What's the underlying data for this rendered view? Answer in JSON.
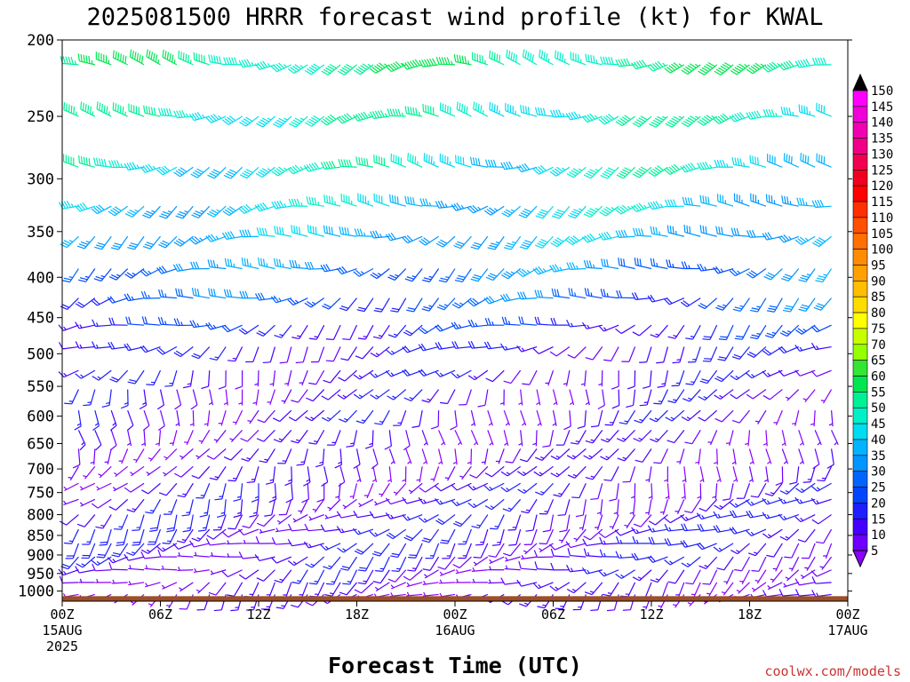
{
  "chart_data": {
    "type": "wind-barb-profile",
    "title": "2025081500 HRRR forecast wind profile (kt) for KWAL",
    "xlabel": "Forecast Time (UTC)",
    "ylabel": "",
    "credit": "coolwx.com/models",
    "x_range_hours": [
      0,
      48
    ],
    "y_range_hpa": [
      200,
      1030
    ],
    "y_scale": "log",
    "y_ticks": [
      "200",
      "250",
      "300",
      "350",
      "400",
      "450",
      "500",
      "550",
      "600",
      "650",
      "700",
      "750",
      "800",
      "850",
      "900",
      "950",
      "1000"
    ],
    "x_ticks": [
      {
        "label": "00Z",
        "sub": [
          "15AUG",
          "2025"
        ],
        "hour": 0
      },
      {
        "label": "06Z",
        "sub": [],
        "hour": 6
      },
      {
        "label": "12Z",
        "sub": [],
        "hour": 12
      },
      {
        "label": "18Z",
        "sub": [],
        "hour": 18
      },
      {
        "label": "00Z",
        "sub": [
          "16AUG"
        ],
        "hour": 24
      },
      {
        "label": "06Z",
        "sub": [],
        "hour": 30
      },
      {
        "label": "12Z",
        "sub": [],
        "hour": 36
      },
      {
        "label": "18Z",
        "sub": [],
        "hour": 42
      },
      {
        "label": "00Z",
        "sub": [
          "17AUG"
        ],
        "hour": 48
      }
    ],
    "colorbar": {
      "labels": [
        "150",
        "145",
        "140",
        "135",
        "130",
        "125",
        "120",
        "115",
        "110",
        "105",
        "100",
        "95",
        "90",
        "85",
        "80",
        "75",
        "70",
        "65",
        "60",
        "55",
        "50",
        "45",
        "40",
        "35",
        "30",
        "25",
        "20",
        "15",
        "10",
        "5"
      ],
      "colors": [
        "#ff00ff",
        "#f000d8",
        "#f000b0",
        "#f00088",
        "#f00050",
        "#f00020",
        "#ff0000",
        "#ff3000",
        "#ff5000",
        "#ff7000",
        "#ff8c00",
        "#ffa000",
        "#ffbe00",
        "#ffdc00",
        "#ffff00",
        "#c8ff00",
        "#96ff00",
        "#32e632",
        "#00e650",
        "#00f096",
        "#00f0c8",
        "#00dcf0",
        "#00b4ff",
        "#0096ff",
        "#0064ff",
        "#0046ff",
        "#1e1eff",
        "#4600ff",
        "#6e00ff",
        "#8c00ff"
      ],
      "top_color": "#000000",
      "bottom_color": "#8c00ff"
    },
    "ground": {
      "color": "#9b4f2a",
      "pressure_top_hpa": 1015
    },
    "levels_hpa": [
      215,
      250,
      290,
      325,
      355,
      390,
      425,
      460,
      490,
      525,
      555,
      590,
      625,
      660,
      695,
      730,
      765,
      800,
      835,
      870,
      905,
      940,
      975,
      1010
    ],
    "times_hours": [
      0,
      1,
      2,
      3,
      4,
      5,
      6,
      7,
      8,
      9,
      10,
      11,
      12,
      13,
      14,
      15,
      16,
      17,
      18,
      19,
      20,
      21,
      22,
      23,
      24,
      25,
      26,
      27,
      28,
      29,
      30,
      31,
      32,
      33,
      34,
      35,
      36,
      37,
      38,
      39,
      40,
      41,
      42,
      43,
      44,
      45,
      46,
      47,
      48
    ],
    "speed_kt_by_level": [
      52,
      48,
      45,
      40,
      36,
      30,
      25,
      18,
      14,
      12,
      10,
      10,
      9,
      9,
      9,
      10,
      11,
      12,
      13,
      13,
      12,
      10,
      9,
      8
    ],
    "direction_deg_by_level": [
      265,
      262,
      260,
      255,
      250,
      248,
      245,
      240,
      230,
      215,
      200,
      195,
      190,
      195,
      200,
      210,
      220,
      225,
      230,
      235,
      240,
      240,
      235,
      230
    ]
  }
}
